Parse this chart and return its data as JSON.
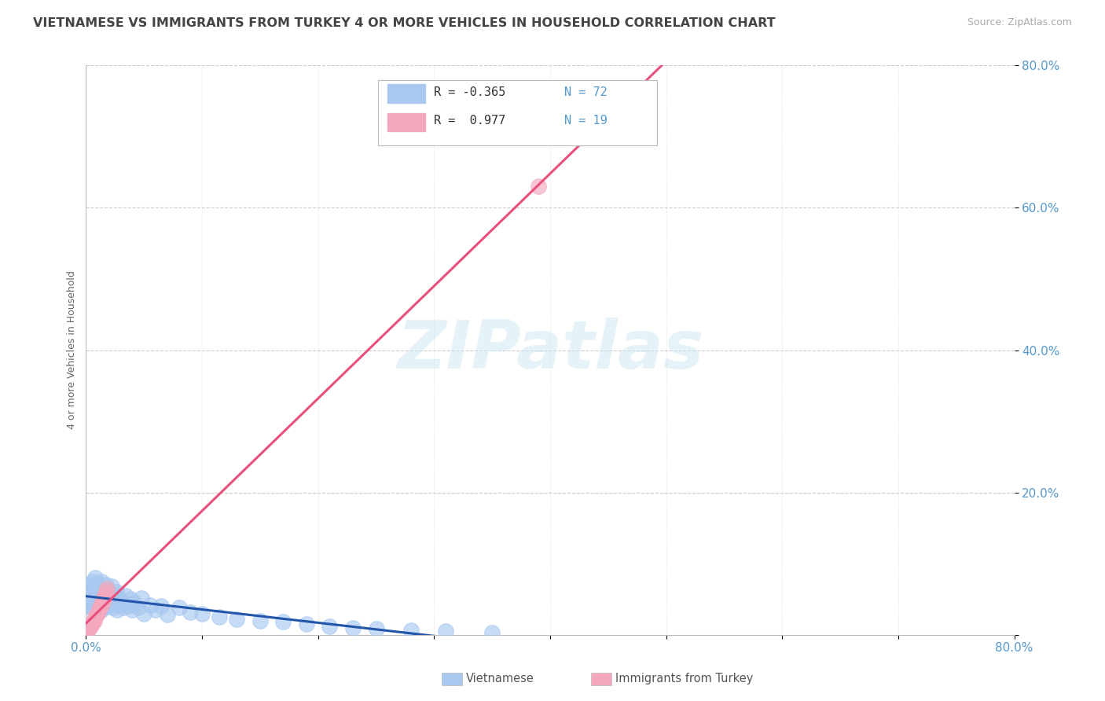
{
  "title": "VIETNAMESE VS IMMIGRANTS FROM TURKEY 4 OR MORE VEHICLES IN HOUSEHOLD CORRELATION CHART",
  "source": "Source: ZipAtlas.com",
  "ylabel": "4 or more Vehicles in Household",
  "xlabel": "",
  "xlim": [
    0,
    0.8
  ],
  "ylim": [
    0,
    0.8
  ],
  "xtick_positions": [
    0.0,
    0.1,
    0.2,
    0.3,
    0.4,
    0.5,
    0.6,
    0.7,
    0.8
  ],
  "xtick_labels": [
    "0.0%",
    "",
    "",
    "",
    "",
    "",
    "",
    "",
    "80.0%"
  ],
  "ytick_positions": [
    0.0,
    0.2,
    0.4,
    0.6,
    0.8
  ],
  "ytick_labels": [
    "",
    "20.0%",
    "40.0%",
    "60.0%",
    "80.0%"
  ],
  "watermark_text": "ZIPatlas",
  "legend_entries": [
    {
      "label": "R = -0.365  N = 72",
      "color": "#a8c8f0"
    },
    {
      "label": "R =  0.977  N = 19",
      "color": "#f4b8c8"
    }
  ],
  "bottom_legend": [
    {
      "label": "Vietnamese",
      "color": "#a8c8f0"
    },
    {
      "label": "Immigrants from Turkey",
      "color": "#f4b8c8"
    }
  ],
  "series": [
    {
      "name": "Vietnamese",
      "scatter_color": "#a8c8f0",
      "trend_color": "#2255aa",
      "R": -0.365,
      "N": 72,
      "x": [
        0.001,
        0.002,
        0.002,
        0.003,
        0.003,
        0.004,
        0.004,
        0.005,
        0.005,
        0.006,
        0.006,
        0.007,
        0.007,
        0.008,
        0.008,
        0.009,
        0.009,
        0.01,
        0.01,
        0.011,
        0.011,
        0.012,
        0.012,
        0.013,
        0.013,
        0.014,
        0.015,
        0.015,
        0.016,
        0.017,
        0.017,
        0.018,
        0.018,
        0.019,
        0.02,
        0.021,
        0.022,
        0.023,
        0.024,
        0.025,
        0.026,
        0.027,
        0.028,
        0.029,
        0.03,
        0.032,
        0.034,
        0.036,
        0.038,
        0.04,
        0.042,
        0.045,
        0.048,
        0.05,
        0.055,
        0.06,
        0.065,
        0.07,
        0.08,
        0.09,
        0.1,
        0.115,
        0.13,
        0.15,
        0.17,
        0.19,
        0.21,
        0.23,
        0.25,
        0.28,
        0.31,
        0.35
      ],
      "y": [
        0.055,
        0.048,
        0.07,
        0.06,
        0.042,
        0.065,
        0.038,
        0.058,
        0.045,
        0.075,
        0.052,
        0.068,
        0.035,
        0.062,
        0.08,
        0.05,
        0.044,
        0.072,
        0.04,
        0.055,
        0.066,
        0.048,
        0.058,
        0.035,
        0.075,
        0.042,
        0.06,
        0.038,
        0.053,
        0.07,
        0.046,
        0.064,
        0.04,
        0.058,
        0.05,
        0.044,
        0.068,
        0.038,
        0.056,
        0.045,
        0.06,
        0.035,
        0.052,
        0.042,
        0.048,
        0.038,
        0.055,
        0.04,
        0.05,
        0.035,
        0.045,
        0.038,
        0.052,
        0.03,
        0.042,
        0.035,
        0.04,
        0.028,
        0.038,
        0.032,
        0.03,
        0.025,
        0.022,
        0.02,
        0.018,
        0.015,
        0.012,
        0.01,
        0.008,
        0.006,
        0.005,
        0.003
      ]
    },
    {
      "name": "Immigrants from Turkey",
      "scatter_color": "#f4a8be",
      "trend_color": "#e8507a",
      "R": 0.977,
      "N": 19,
      "x": [
        0.001,
        0.002,
        0.003,
        0.004,
        0.005,
        0.006,
        0.007,
        0.008,
        0.009,
        0.01,
        0.011,
        0.012,
        0.013,
        0.014,
        0.015,
        0.016,
        0.017,
        0.018,
        0.39
      ],
      "y": [
        0.005,
        0.008,
        0.01,
        0.012,
        0.015,
        0.018,
        0.02,
        0.025,
        0.028,
        0.03,
        0.035,
        0.038,
        0.042,
        0.045,
        0.05,
        0.055,
        0.06,
        0.065,
        0.63
      ]
    }
  ],
  "background_color": "#ffffff",
  "grid_color": "#cccccc",
  "title_color": "#444444",
  "axis_label_color": "#666666",
  "tick_color": "#5599cc",
  "title_fontsize": 11.5,
  "ylabel_fontsize": 9
}
